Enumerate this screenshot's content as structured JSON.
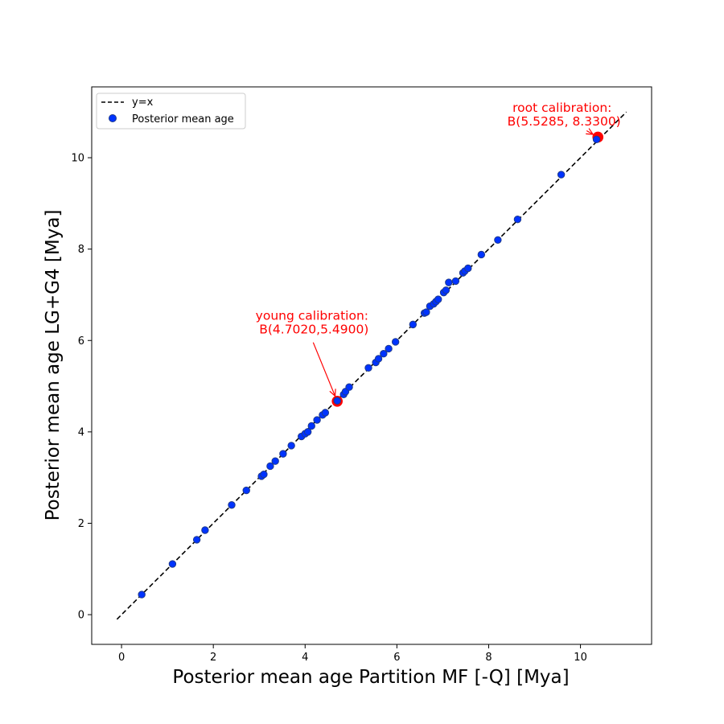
{
  "chart_data": {
    "type": "scatter",
    "title": "",
    "xlabel": "Posterior mean age Partition MF [-Q] [Mya]",
    "ylabel": "Posterior mean age LG+G4 [Mya]",
    "xlim": [
      -0.65,
      11.55
    ],
    "ylim": [
      -0.65,
      11.55
    ],
    "xticks": [
      0,
      2,
      4,
      6,
      8,
      10
    ],
    "yticks": [
      0,
      2,
      4,
      6,
      8,
      10
    ],
    "grid": false,
    "legend_position": "top-left",
    "legend": [
      {
        "label": "y=x",
        "style": "dashed-line",
        "color": "#000000"
      },
      {
        "label": "Posterior mean age",
        "style": "marker",
        "color": "#0033ff"
      }
    ],
    "series": [
      {
        "name": "y=x",
        "kind": "line",
        "color": "#000000",
        "x": [
          -0.1,
          11.0
        ],
        "y": [
          -0.1,
          11.0
        ]
      },
      {
        "name": "Posterior mean age",
        "kind": "scatter",
        "color": "#0033ff",
        "edge_color": "#1f3a8a",
        "x": [
          0.44,
          1.11,
          1.64,
          1.82,
          2.4,
          2.72,
          3.05,
          3.1,
          3.24,
          3.35,
          3.52,
          3.7,
          3.92,
          4.0,
          4.06,
          4.14,
          4.26,
          4.38,
          4.44,
          4.7,
          4.84,
          4.88,
          4.96,
          5.38,
          5.54,
          5.6,
          5.71,
          5.82,
          5.97,
          6.35,
          6.6,
          6.64,
          6.72,
          6.8,
          6.85,
          6.9,
          7.02,
          7.07,
          7.13,
          7.28,
          7.44,
          7.48,
          7.55,
          7.84,
          8.2,
          8.63,
          9.58,
          10.35
        ],
        "y": [
          0.44,
          1.11,
          1.64,
          1.85,
          2.4,
          2.72,
          3.03,
          3.07,
          3.25,
          3.36,
          3.52,
          3.7,
          3.9,
          3.96,
          4.0,
          4.13,
          4.26,
          4.37,
          4.42,
          4.68,
          4.82,
          4.88,
          4.98,
          5.4,
          5.52,
          5.6,
          5.71,
          5.82,
          5.97,
          6.35,
          6.6,
          6.62,
          6.75,
          6.8,
          6.85,
          6.9,
          7.05,
          7.1,
          7.27,
          7.3,
          7.48,
          7.52,
          7.58,
          7.88,
          8.2,
          8.65,
          9.63,
          10.4
        ]
      }
    ],
    "highlights": [
      {
        "x": 4.7,
        "y": 4.67,
        "color": "#ff0000"
      },
      {
        "x": 10.38,
        "y": 10.45,
        "color": "#ff0000"
      }
    ],
    "annotations": [
      {
        "lines": [
          "young calibration:",
          " B(4.7020,5.4900)"
        ],
        "color": "#ff0000",
        "text_x": 4.15,
        "text_y": 6.45,
        "point_x": 4.7,
        "point_y": 4.67
      },
      {
        "lines": [
          "root calibration:",
          " B(5.5285, 8.3300)"
        ],
        "color": "#ff0000",
        "text_x": 9.6,
        "text_y": 11.0,
        "point_x": 10.38,
        "point_y": 10.45
      }
    ]
  }
}
